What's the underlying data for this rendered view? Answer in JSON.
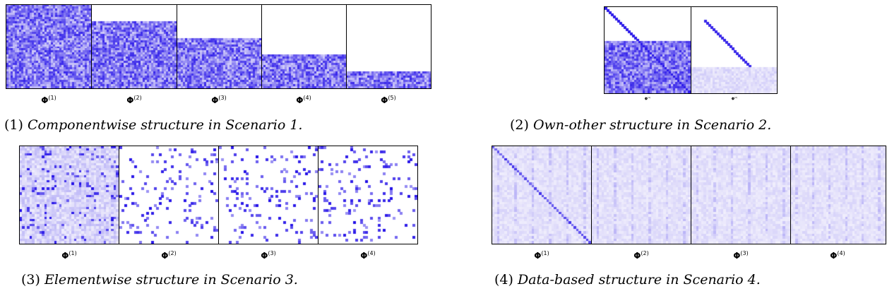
{
  "figures": [
    {
      "id": "scenario1",
      "caption_number": "(1)",
      "caption_text": "Componentwise structure in Scenario 1.",
      "pattern": "componentwise",
      "matrices": [
        {
          "label": "Φ",
          "superscript": "(1)",
          "filled_fraction": 1.0
        },
        {
          "label": "Φ",
          "superscript": "(2)",
          "filled_fraction": 0.8
        },
        {
          "label": "Φ",
          "superscript": "(3)",
          "filled_fraction": 0.6
        },
        {
          "label": "Φ",
          "superscript": "(4)",
          "filled_fraction": 0.4
        },
        {
          "label": "Φ",
          "superscript": "(5)",
          "filled_fraction": 0.2
        }
      ]
    },
    {
      "id": "scenario2",
      "caption_number": "(2)",
      "caption_text": "Own-other structure in Scenario 2.",
      "pattern": "own-other",
      "matrices": [
        {
          "label": "Φ",
          "superscript": "(1)",
          "filled_fraction": 0.6
        },
        {
          "label": "Φ",
          "superscript": "(2)",
          "filled_fraction": 0.3
        }
      ]
    },
    {
      "id": "scenario3",
      "caption_number": "(3)",
      "caption_text": "Elementwise structure in Scenario 3.",
      "pattern": "elementwise",
      "matrices": [
        {
          "label": "Φ",
          "superscript": "(1)"
        },
        {
          "label": "Φ",
          "superscript": "(2)"
        },
        {
          "label": "Φ",
          "superscript": "(3)"
        },
        {
          "label": "Φ",
          "superscript": "(4)"
        }
      ]
    },
    {
      "id": "scenario4",
      "caption_number": "(4)",
      "caption_text": "Data-based structure in Scenario 4.",
      "pattern": "data-based",
      "matrices": [
        {
          "label": "Φ",
          "superscript": "(1)"
        },
        {
          "label": "Φ",
          "superscript": "(2)"
        },
        {
          "label": "Φ",
          "superscript": "(3)"
        },
        {
          "label": "Φ",
          "superscript": "(4)"
        }
      ]
    }
  ],
  "colors": {
    "dark": "#2a10e0",
    "mid": "#7a6cf0",
    "light": "#e6e3fc",
    "border": "#000000"
  }
}
